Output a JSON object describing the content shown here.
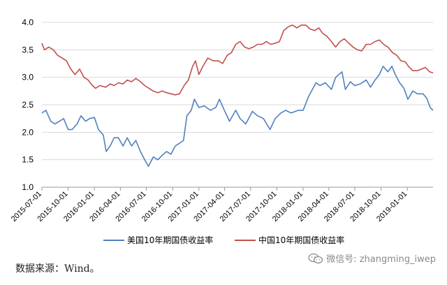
{
  "chart_data": {
    "type": "line",
    "ylim": [
      1.0,
      4.0
    ],
    "y_ticks": [
      "1.0",
      "1.5",
      "2.0",
      "2.5",
      "3.0",
      "3.5",
      "4.0"
    ],
    "x_ticks": [
      "2015-07-01",
      "2015-10-01",
      "2016-01-01",
      "2016-04-01",
      "2016-07-01",
      "2016-10-01",
      "2017-01-01",
      "2017-04-01",
      "2017-07-01",
      "2017-10-01",
      "2018-01-01",
      "2018-04-01",
      "2018-07-01",
      "2018-10-01",
      "2019-01-01"
    ],
    "x_range": [
      "2015-07-01",
      "2019-04-01"
    ],
    "grid": "horizontal",
    "legend_position": "bottom",
    "series": [
      {
        "name": "美国10年期国债收益率",
        "color": "#4f81bd",
        "points": [
          [
            "2015-07-01",
            2.35
          ],
          [
            "2015-07-15",
            2.4
          ],
          [
            "2015-08-01",
            2.2
          ],
          [
            "2015-08-15",
            2.15
          ],
          [
            "2015-09-01",
            2.2
          ],
          [
            "2015-09-15",
            2.25
          ],
          [
            "2015-10-01",
            2.05
          ],
          [
            "2015-10-15",
            2.05
          ],
          [
            "2015-11-01",
            2.15
          ],
          [
            "2015-11-15",
            2.3
          ],
          [
            "2015-12-01",
            2.2
          ],
          [
            "2015-12-15",
            2.25
          ],
          [
            "2016-01-01",
            2.27
          ],
          [
            "2016-01-15",
            2.05
          ],
          [
            "2016-02-01",
            1.95
          ],
          [
            "2016-02-11",
            1.65
          ],
          [
            "2016-02-25",
            1.75
          ],
          [
            "2016-03-10",
            1.9
          ],
          [
            "2016-03-25",
            1.9
          ],
          [
            "2016-04-10",
            1.75
          ],
          [
            "2016-04-25",
            1.9
          ],
          [
            "2016-05-10",
            1.75
          ],
          [
            "2016-05-25",
            1.85
          ],
          [
            "2016-06-10",
            1.65
          ],
          [
            "2016-06-25",
            1.5
          ],
          [
            "2016-07-08",
            1.38
          ],
          [
            "2016-07-25",
            1.55
          ],
          [
            "2016-08-10",
            1.5
          ],
          [
            "2016-08-25",
            1.58
          ],
          [
            "2016-09-10",
            1.65
          ],
          [
            "2016-09-25",
            1.6
          ],
          [
            "2016-10-10",
            1.75
          ],
          [
            "2016-10-25",
            1.8
          ],
          [
            "2016-11-08",
            1.85
          ],
          [
            "2016-11-20",
            2.3
          ],
          [
            "2016-12-05",
            2.4
          ],
          [
            "2016-12-16",
            2.6
          ],
          [
            "2017-01-01",
            2.45
          ],
          [
            "2017-01-20",
            2.48
          ],
          [
            "2017-02-10",
            2.4
          ],
          [
            "2017-03-01",
            2.45
          ],
          [
            "2017-03-14",
            2.6
          ],
          [
            "2017-03-31",
            2.4
          ],
          [
            "2017-04-18",
            2.2
          ],
          [
            "2017-05-10",
            2.4
          ],
          [
            "2017-05-25",
            2.25
          ],
          [
            "2017-06-14",
            2.15
          ],
          [
            "2017-07-07",
            2.38
          ],
          [
            "2017-07-25",
            2.3
          ],
          [
            "2017-08-15",
            2.25
          ],
          [
            "2017-09-07",
            2.05
          ],
          [
            "2017-09-25",
            2.25
          ],
          [
            "2017-10-15",
            2.35
          ],
          [
            "2017-11-01",
            2.4
          ],
          [
            "2017-11-20",
            2.35
          ],
          [
            "2017-12-15",
            2.4
          ],
          [
            "2018-01-01",
            2.4
          ],
          [
            "2018-01-20",
            2.65
          ],
          [
            "2018-02-15",
            2.9
          ],
          [
            "2018-03-01",
            2.85
          ],
          [
            "2018-03-20",
            2.9
          ],
          [
            "2018-04-10",
            2.78
          ],
          [
            "2018-04-25",
            3.0
          ],
          [
            "2018-05-17",
            3.1
          ],
          [
            "2018-05-29",
            2.78
          ],
          [
            "2018-06-15",
            2.92
          ],
          [
            "2018-07-01",
            2.85
          ],
          [
            "2018-07-20",
            2.88
          ],
          [
            "2018-08-10",
            2.95
          ],
          [
            "2018-08-25",
            2.82
          ],
          [
            "2018-09-10",
            2.95
          ],
          [
            "2018-09-25",
            3.05
          ],
          [
            "2018-10-08",
            3.2
          ],
          [
            "2018-10-25",
            3.1
          ],
          [
            "2018-11-08",
            3.2
          ],
          [
            "2018-11-20",
            3.05
          ],
          [
            "2018-12-05",
            2.9
          ],
          [
            "2018-12-20",
            2.8
          ],
          [
            "2019-01-03",
            2.6
          ],
          [
            "2019-01-20",
            2.75
          ],
          [
            "2019-02-05",
            2.7
          ],
          [
            "2019-02-25",
            2.7
          ],
          [
            "2019-03-10",
            2.62
          ],
          [
            "2019-03-22",
            2.45
          ],
          [
            "2019-04-01",
            2.4
          ]
        ]
      },
      {
        "name": "中国10年期国债收益率",
        "color": "#c0504d",
        "points": [
          [
            "2015-07-01",
            3.62
          ],
          [
            "2015-07-10",
            3.5
          ],
          [
            "2015-07-25",
            3.55
          ],
          [
            "2015-08-10",
            3.5
          ],
          [
            "2015-08-25",
            3.4
          ],
          [
            "2015-09-10",
            3.35
          ],
          [
            "2015-09-25",
            3.3
          ],
          [
            "2015-10-10",
            3.15
          ],
          [
            "2015-10-25",
            3.05
          ],
          [
            "2015-11-10",
            3.15
          ],
          [
            "2015-11-25",
            3.0
          ],
          [
            "2015-12-10",
            2.95
          ],
          [
            "2015-12-25",
            2.85
          ],
          [
            "2016-01-05",
            2.8
          ],
          [
            "2016-01-20",
            2.85
          ],
          [
            "2016-02-10",
            2.82
          ],
          [
            "2016-02-25",
            2.88
          ],
          [
            "2016-03-10",
            2.85
          ],
          [
            "2016-03-25",
            2.9
          ],
          [
            "2016-04-10",
            2.88
          ],
          [
            "2016-04-25",
            2.95
          ],
          [
            "2016-05-10",
            2.92
          ],
          [
            "2016-05-25",
            2.98
          ],
          [
            "2016-06-10",
            2.92
          ],
          [
            "2016-06-25",
            2.85
          ],
          [
            "2016-07-10",
            2.8
          ],
          [
            "2016-07-25",
            2.75
          ],
          [
            "2016-08-10",
            2.72
          ],
          [
            "2016-08-25",
            2.75
          ],
          [
            "2016-09-10",
            2.72
          ],
          [
            "2016-09-25",
            2.7
          ],
          [
            "2016-10-10",
            2.68
          ],
          [
            "2016-10-25",
            2.7
          ],
          [
            "2016-11-10",
            2.85
          ],
          [
            "2016-11-25",
            2.95
          ],
          [
            "2016-12-10",
            3.2
          ],
          [
            "2016-12-20",
            3.3
          ],
          [
            "2017-01-01",
            3.05
          ],
          [
            "2017-01-15",
            3.2
          ],
          [
            "2017-02-01",
            3.35
          ],
          [
            "2017-02-20",
            3.3
          ],
          [
            "2017-03-10",
            3.3
          ],
          [
            "2017-03-25",
            3.25
          ],
          [
            "2017-04-10",
            3.4
          ],
          [
            "2017-04-25",
            3.45
          ],
          [
            "2017-05-10",
            3.6
          ],
          [
            "2017-05-25",
            3.65
          ],
          [
            "2017-06-10",
            3.55
          ],
          [
            "2017-06-25",
            3.52
          ],
          [
            "2017-07-10",
            3.55
          ],
          [
            "2017-07-25",
            3.6
          ],
          [
            "2017-08-10",
            3.6
          ],
          [
            "2017-08-25",
            3.65
          ],
          [
            "2017-09-10",
            3.6
          ],
          [
            "2017-09-25",
            3.62
          ],
          [
            "2017-10-10",
            3.65
          ],
          [
            "2017-10-25",
            3.85
          ],
          [
            "2017-11-10",
            3.92
          ],
          [
            "2017-11-25",
            3.95
          ],
          [
            "2017-12-10",
            3.9
          ],
          [
            "2017-12-25",
            3.95
          ],
          [
            "2018-01-10",
            3.95
          ],
          [
            "2018-01-25",
            3.88
          ],
          [
            "2018-02-10",
            3.85
          ],
          [
            "2018-02-25",
            3.9
          ],
          [
            "2018-03-10",
            3.8
          ],
          [
            "2018-03-25",
            3.75
          ],
          [
            "2018-04-10",
            3.65
          ],
          [
            "2018-04-25",
            3.55
          ],
          [
            "2018-05-10",
            3.65
          ],
          [
            "2018-05-25",
            3.7
          ],
          [
            "2018-06-10",
            3.62
          ],
          [
            "2018-06-25",
            3.55
          ],
          [
            "2018-07-10",
            3.5
          ],
          [
            "2018-07-25",
            3.48
          ],
          [
            "2018-08-10",
            3.6
          ],
          [
            "2018-08-25",
            3.6
          ],
          [
            "2018-09-10",
            3.65
          ],
          [
            "2018-09-25",
            3.68
          ],
          [
            "2018-10-10",
            3.6
          ],
          [
            "2018-10-25",
            3.55
          ],
          [
            "2018-11-10",
            3.45
          ],
          [
            "2018-11-25",
            3.4
          ],
          [
            "2018-12-10",
            3.3
          ],
          [
            "2018-12-25",
            3.28
          ],
          [
            "2019-01-05",
            3.2
          ],
          [
            "2019-01-20",
            3.12
          ],
          [
            "2019-02-05",
            3.12
          ],
          [
            "2019-02-20",
            3.15
          ],
          [
            "2019-03-05",
            3.18
          ],
          [
            "2019-03-20",
            3.1
          ],
          [
            "2019-04-01",
            3.08
          ]
        ]
      }
    ]
  },
  "source": "数据来源：Wind。",
  "watermark": "微信号: zhangming_iwep"
}
